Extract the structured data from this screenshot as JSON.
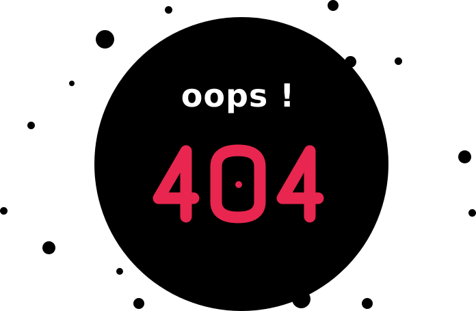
{
  "message": "oops !",
  "error_code": "404",
  "colors": {
    "background": "#ffffff",
    "circle": "#000000",
    "message_text": "#ffffff",
    "code_accent": "#e8264f",
    "dots": "#000000"
  },
  "decorations": [
    "scattered-dot",
    "scattered-dot",
    "scattered-dot",
    "scattered-dot",
    "scattered-dot",
    "scattered-dot",
    "scattered-dot",
    "scattered-dot",
    "scattered-dot",
    "scattered-dot",
    "scattered-dot",
    "scattered-dot",
    "scattered-dot",
    "scattered-dot",
    "scattered-dot",
    "scattered-dot",
    "scattered-dot"
  ]
}
